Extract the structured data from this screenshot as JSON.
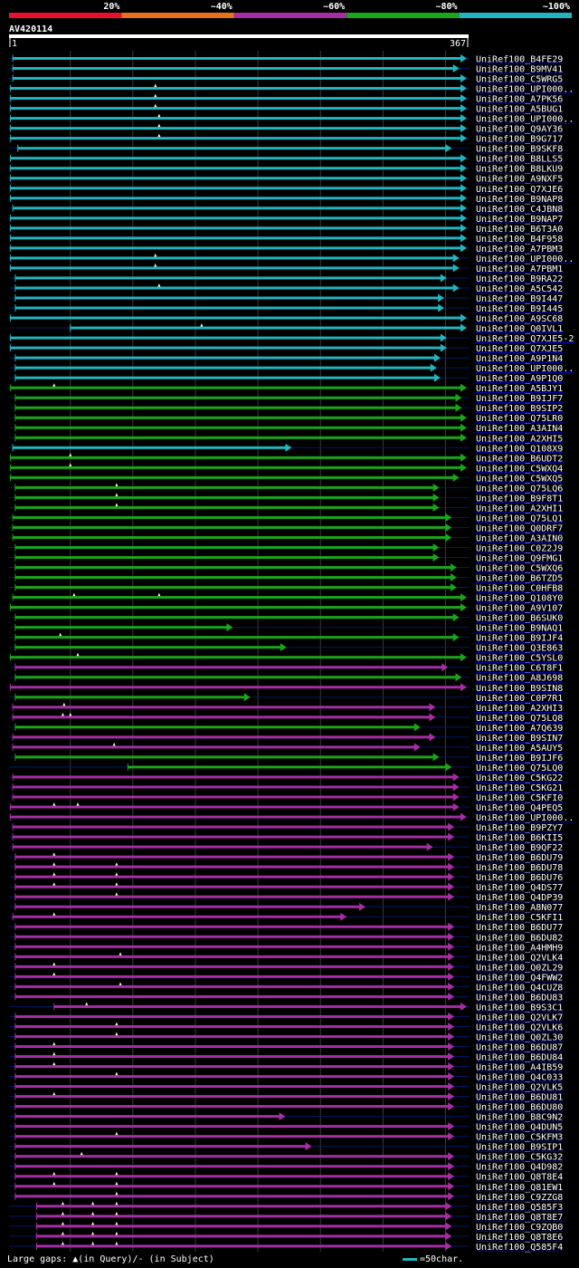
{
  "chart_data": {
    "type": "alignment_overview",
    "query_name": "AV420114",
    "query_range": [
      1,
      367
    ],
    "color_scale": [
      {
        "label": "20%",
        "color": "#e8102a"
      },
      {
        "label": "~40%",
        "color": "#e8711e"
      },
      {
        "label": "~60%",
        "color": "#a52ea5"
      },
      {
        "label": "~80%",
        "color": "#1aa51a"
      },
      {
        "label": "~100%",
        "color": "#21b5c0"
      }
    ],
    "colors": {
      "cyan": "#21b5c0",
      "green": "#1aa51a",
      "magenta": "#a52ea5",
      "gap": "#ffffcc",
      "link": "#0000ff"
    },
    "hits": [
      {
        "name": "UniRef100_B4FE29",
        "c": "cyan",
        "s": 4,
        "e": 367,
        "g": []
      },
      {
        "name": "UniRef100_B9MV41",
        "c": "cyan",
        "s": 4,
        "e": 361,
        "g": []
      },
      {
        "name": "UniRef100_C5WRG5",
        "c": "cyan",
        "s": 4,
        "e": 367,
        "g": []
      },
      {
        "name": "UniRef100_UPI000..",
        "c": "cyan",
        "s": 2,
        "e": 367,
        "g": [
          118
        ]
      },
      {
        "name": "UniRef100_A7PK56",
        "c": "cyan",
        "s": 2,
        "e": 367,
        "g": [
          118
        ]
      },
      {
        "name": "UniRef100_A5BUG1",
        "c": "cyan",
        "s": 2,
        "e": 367,
        "g": [
          118
        ]
      },
      {
        "name": "UniRef100_UPI000..",
        "c": "cyan",
        "s": 2,
        "e": 367,
        "g": [
          121
        ]
      },
      {
        "name": "UniRef100_Q9AY36",
        "c": "cyan",
        "s": 2,
        "e": 367,
        "g": [
          121
        ]
      },
      {
        "name": "UniRef100_B9G717",
        "c": "cyan",
        "s": 2,
        "e": 367,
        "g": [
          121
        ]
      },
      {
        "name": "UniRef100_B9SKF8",
        "c": "cyan",
        "s": 8,
        "e": 355,
        "g": []
      },
      {
        "name": "UniRef100_B8LLS5",
        "c": "cyan",
        "s": 2,
        "e": 367,
        "g": []
      },
      {
        "name": "UniRef100_B8LKU9",
        "c": "cyan",
        "s": 2,
        "e": 367,
        "g": []
      },
      {
        "name": "UniRef100_A9NXF5",
        "c": "cyan",
        "s": 2,
        "e": 367,
        "g": []
      },
      {
        "name": "UniRef100_Q7XJE6",
        "c": "cyan",
        "s": 2,
        "e": 367,
        "g": []
      },
      {
        "name": "UniRef100_B9NAP8",
        "c": "cyan",
        "s": 2,
        "e": 367,
        "g": []
      },
      {
        "name": "UniRef100_C4JBN8",
        "c": "cyan",
        "s": 4,
        "e": 367,
        "g": []
      },
      {
        "name": "UniRef100_B9NAP7",
        "c": "cyan",
        "s": 2,
        "e": 367,
        "g": []
      },
      {
        "name": "UniRef100_B6T3A0",
        "c": "cyan",
        "s": 2,
        "e": 367,
        "g": []
      },
      {
        "name": "UniRef100_B4F958",
        "c": "cyan",
        "s": 2,
        "e": 367,
        "g": []
      },
      {
        "name": "UniRef100_A7PBM3",
        "c": "cyan",
        "s": 2,
        "e": 367,
        "g": []
      },
      {
        "name": "UniRef100_UPI000..",
        "c": "cyan",
        "s": 2,
        "e": 361,
        "g": [
          118
        ]
      },
      {
        "name": "UniRef100_A7PBM1",
        "c": "cyan",
        "s": 2,
        "e": 361,
        "g": [
          118
        ]
      },
      {
        "name": "UniRef100_B9RA22",
        "c": "cyan",
        "s": 6,
        "e": 351,
        "g": []
      },
      {
        "name": "UniRef100_A5C542",
        "c": "cyan",
        "s": 6,
        "e": 361,
        "g": [
          121
        ]
      },
      {
        "name": "UniRef100_B9I447",
        "c": "cyan",
        "s": 6,
        "e": 349,
        "g": []
      },
      {
        "name": "UniRef100_B9I445",
        "c": "cyan",
        "s": 6,
        "e": 349,
        "g": []
      },
      {
        "name": "UniRef100_A9SC68",
        "c": "cyan",
        "s": 2,
        "e": 367,
        "g": []
      },
      {
        "name": "UniRef100_Q0IVL1",
        "c": "cyan",
        "s": 50,
        "e": 367,
        "g": [
          155
        ]
      },
      {
        "name": "UniRef100_Q7XJE5-2",
        "c": "cyan",
        "s": 2,
        "e": 351,
        "g": []
      },
      {
        "name": "UniRef100_Q7XJE5",
        "c": "cyan",
        "s": 2,
        "e": 351,
        "g": []
      },
      {
        "name": "UniRef100_A9P1N4",
        "c": "cyan",
        "s": 6,
        "e": 346,
        "g": []
      },
      {
        "name": "UniRef100_UPI000..",
        "c": "cyan",
        "s": 6,
        "e": 343,
        "g": []
      },
      {
        "name": "UniRef100_A9P1Q0",
        "c": "cyan",
        "s": 6,
        "e": 346,
        "g": []
      },
      {
        "name": "UniRef100_A5BJY1",
        "c": "green",
        "s": 2,
        "e": 367,
        "g": [
          37
        ]
      },
      {
        "name": "UniRef100_B9IJF7",
        "c": "green",
        "s": 6,
        "e": 363,
        "g": []
      },
      {
        "name": "UniRef100_B9SIP2",
        "c": "green",
        "s": 6,
        "e": 363,
        "g": []
      },
      {
        "name": "UniRef100_Q75LR0",
        "c": "green",
        "s": 6,
        "e": 367,
        "g": []
      },
      {
        "name": "UniRef100_A3AIN4",
        "c": "green",
        "s": 6,
        "e": 367,
        "g": []
      },
      {
        "name": "UniRef100_A2XHI5",
        "c": "green",
        "s": 6,
        "e": 367,
        "g": []
      },
      {
        "name": "UniRef100_Q108X9",
        "c": "cyan",
        "s": 4,
        "e": 227,
        "g": []
      },
      {
        "name": "UniRef100_B6UDT2",
        "c": "green",
        "s": 2,
        "e": 367,
        "g": [
          50
        ]
      },
      {
        "name": "UniRef100_C5WXQ4",
        "c": "green",
        "s": 2,
        "e": 367,
        "g": [
          50
        ]
      },
      {
        "name": "UniRef100_C5WXQ5",
        "c": "green",
        "s": 2,
        "e": 361,
        "g": []
      },
      {
        "name": "UniRef100_Q75LQ6",
        "c": "green",
        "s": 6,
        "e": 345,
        "g": [
          87
        ]
      },
      {
        "name": "UniRef100_B9F8T1",
        "c": "green",
        "s": 6,
        "e": 345,
        "g": [
          87
        ]
      },
      {
        "name": "UniRef100_A2XHI1",
        "c": "green",
        "s": 6,
        "e": 345,
        "g": [
          87
        ]
      },
      {
        "name": "UniRef100_Q75LQ1",
        "c": "green",
        "s": 4,
        "e": 355,
        "g": []
      },
      {
        "name": "UniRef100_Q0DRF7",
        "c": "green",
        "s": 4,
        "e": 355,
        "g": []
      },
      {
        "name": "UniRef100_A3AIN0",
        "c": "green",
        "s": 4,
        "e": 355,
        "g": []
      },
      {
        "name": "UniRef100_C0Z2J9",
        "c": "green",
        "s": 6,
        "e": 345,
        "g": []
      },
      {
        "name": "UniRef100_Q9FMG1",
        "c": "green",
        "s": 6,
        "e": 345,
        "g": []
      },
      {
        "name": "UniRef100_C5WXQ6",
        "c": "green",
        "s": 6,
        "e": 359,
        "g": []
      },
      {
        "name": "UniRef100_B6TZD5",
        "c": "green",
        "s": 6,
        "e": 359,
        "g": []
      },
      {
        "name": "UniRef100_C0HFB8",
        "c": "green",
        "s": 6,
        "e": 359,
        "g": []
      },
      {
        "name": "UniRef100_Q108Y0",
        "c": "green",
        "s": 4,
        "e": 367,
        "g": [
          53,
          121
        ]
      },
      {
        "name": "UniRef100_A9V107",
        "c": "green",
        "s": 2,
        "e": 367,
        "g": []
      },
      {
        "name": "UniRef100_B6SUK0",
        "c": "green",
        "s": 6,
        "e": 361,
        "g": []
      },
      {
        "name": "UniRef100_B9NAQ1",
        "c": "green",
        "s": 6,
        "e": 180,
        "g": []
      },
      {
        "name": "UniRef100_B9IJF4",
        "c": "green",
        "s": 6,
        "e": 361,
        "g": [
          42
        ]
      },
      {
        "name": "UniRef100_Q3E863",
        "c": "green",
        "s": 6,
        "e": 223,
        "g": []
      },
      {
        "name": "UniRef100_C5YSL0",
        "c": "green",
        "s": 2,
        "e": 367,
        "g": [
          56
        ]
      },
      {
        "name": "UniRef100_C6T8F1",
        "c": "magenta",
        "s": 6,
        "e": 352,
        "g": []
      },
      {
        "name": "UniRef100_A8J698",
        "c": "green",
        "s": 6,
        "e": 363,
        "g": []
      },
      {
        "name": "UniRef100_B9SIN8",
        "c": "magenta",
        "s": 2,
        "e": 367,
        "g": []
      },
      {
        "name": "UniRef100_C0P7R1",
        "c": "green",
        "s": 6,
        "e": 194,
        "g": []
      },
      {
        "name": "UniRef100_A2XHI3",
        "c": "magenta",
        "s": 4,
        "e": 342,
        "g": [
          45
        ]
      },
      {
        "name": "UniRef100_Q75LQ8",
        "c": "magenta",
        "s": 4,
        "e": 342,
        "g": [
          44,
          50
        ]
      },
      {
        "name": "UniRef100_A7Q639",
        "c": "green",
        "s": 6,
        "e": 330,
        "g": []
      },
      {
        "name": "UniRef100_B9SIN7",
        "c": "magenta",
        "s": 4,
        "e": 342,
        "g": []
      },
      {
        "name": "UniRef100_A5AUY5",
        "c": "magenta",
        "s": 4,
        "e": 330,
        "g": [
          85
        ]
      },
      {
        "name": "UniRef100_B9IJF6",
        "c": "green",
        "s": 6,
        "e": 345,
        "g": []
      },
      {
        "name": "UniRef100_Q75LQ0",
        "c": "green",
        "s": 96,
        "e": 355,
        "g": []
      },
      {
        "name": "UniRef100_C5KG22",
        "c": "magenta",
        "s": 4,
        "e": 361,
        "g": []
      },
      {
        "name": "UniRef100_C5KG21",
        "c": "magenta",
        "s": 4,
        "e": 361,
        "g": []
      },
      {
        "name": "UniRef100_C5KFI0",
        "c": "magenta",
        "s": 4,
        "e": 361,
        "g": []
      },
      {
        "name": "UniRef100_Q4PEQ5",
        "c": "magenta",
        "s": 2,
        "e": 361,
        "g": [
          37,
          56
        ]
      },
      {
        "name": "UniRef100_UPI000..",
        "c": "magenta",
        "s": 2,
        "e": 367,
        "g": []
      },
      {
        "name": "UniRef100_B9PZY7",
        "c": "magenta",
        "s": 4,
        "e": 357,
        "g": []
      },
      {
        "name": "UniRef100_B6KII5",
        "c": "magenta",
        "s": 4,
        "e": 357,
        "g": []
      },
      {
        "name": "UniRef100_B9QF22",
        "c": "magenta",
        "s": 4,
        "e": 340,
        "g": []
      },
      {
        "name": "UniRef100_B6DU79",
        "c": "magenta",
        "s": 6,
        "e": 357,
        "g": [
          37
        ]
      },
      {
        "name": "UniRef100_B6DU78",
        "c": "magenta",
        "s": 6,
        "e": 357,
        "g": [
          37,
          87
        ]
      },
      {
        "name": "UniRef100_B6DU76",
        "c": "magenta",
        "s": 6,
        "e": 357,
        "g": [
          37,
          87
        ]
      },
      {
        "name": "UniRef100_Q4DS77",
        "c": "magenta",
        "s": 6,
        "e": 357,
        "g": [
          37,
          87
        ]
      },
      {
        "name": "UniRef100_Q4DP39",
        "c": "magenta",
        "s": 6,
        "e": 357,
        "g": [
          87
        ]
      },
      {
        "name": "UniRef100_A8N077",
        "c": "magenta",
        "s": 6,
        "e": 286,
        "g": []
      },
      {
        "name": "UniRef100_C5KFI1",
        "c": "magenta",
        "s": 4,
        "e": 271,
        "g": [
          37
        ]
      },
      {
        "name": "UniRef100_B6DU77",
        "c": "magenta",
        "s": 6,
        "e": 357,
        "g": []
      },
      {
        "name": "UniRef100_B6DU82",
        "c": "magenta",
        "s": 6,
        "e": 357,
        "g": []
      },
      {
        "name": "UniRef100_A4HMH9",
        "c": "magenta",
        "s": 6,
        "e": 357,
        "g": []
      },
      {
        "name": "UniRef100_Q2VLK4",
        "c": "magenta",
        "s": 6,
        "e": 357,
        "g": [
          90
        ]
      },
      {
        "name": "UniRef100_Q0ZL29",
        "c": "magenta",
        "s": 6,
        "e": 357,
        "g": [
          37
        ]
      },
      {
        "name": "UniRef100_Q4FWW2",
        "c": "magenta",
        "s": 6,
        "e": 357,
        "g": [
          37
        ]
      },
      {
        "name": "UniRef100_Q4CUZ8",
        "c": "magenta",
        "s": 6,
        "e": 357,
        "g": [
          90
        ]
      },
      {
        "name": "UniRef100_B6DU83",
        "c": "magenta",
        "s": 6,
        "e": 357,
        "g": []
      },
      {
        "name": "UniRef100_B9S3C1",
        "c": "magenta",
        "s": 37,
        "e": 367,
        "g": [
          63
        ]
      },
      {
        "name": "UniRef100_Q2VLK7",
        "c": "magenta",
        "s": 6,
        "e": 357,
        "g": []
      },
      {
        "name": "UniRef100_Q2VLK6",
        "c": "magenta",
        "s": 6,
        "e": 357,
        "g": [
          87
        ]
      },
      {
        "name": "UniRef100_Q0ZL30",
        "c": "magenta",
        "s": 6,
        "e": 357,
        "g": [
          87
        ]
      },
      {
        "name": "UniRef100_B6DU87",
        "c": "magenta",
        "s": 6,
        "e": 357,
        "g": [
          37
        ]
      },
      {
        "name": "UniRef100_B6DU84",
        "c": "magenta",
        "s": 6,
        "e": 357,
        "g": [
          37
        ]
      },
      {
        "name": "UniRef100_A4IB59",
        "c": "magenta",
        "s": 6,
        "e": 357,
        "g": [
          37
        ]
      },
      {
        "name": "UniRef100_Q4C033",
        "c": "magenta",
        "s": 6,
        "e": 357,
        "g": [
          87
        ]
      },
      {
        "name": "UniRef100_Q2VLK5",
        "c": "magenta",
        "s": 6,
        "e": 357,
        "g": []
      },
      {
        "name": "UniRef100_B6DU81",
        "c": "magenta",
        "s": 6,
        "e": 357,
        "g": [
          37
        ]
      },
      {
        "name": "UniRef100_B6DU80",
        "c": "magenta",
        "s": 6,
        "e": 357,
        "g": []
      },
      {
        "name": "UniRef100_B8C9N2",
        "c": "magenta",
        "s": 6,
        "e": 222,
        "g": []
      },
      {
        "name": "UniRef100_Q4DUN5",
        "c": "magenta",
        "s": 6,
        "e": 357,
        "g": []
      },
      {
        "name": "UniRef100_C5KFM3",
        "c": "magenta",
        "s": 6,
        "e": 357,
        "g": [
          87
        ]
      },
      {
        "name": "UniRef100_B9SIP1",
        "c": "magenta",
        "s": 6,
        "e": 243,
        "g": []
      },
      {
        "name": "UniRef100_C5KG32",
        "c": "magenta",
        "s": 6,
        "e": 357,
        "g": [
          59
        ]
      },
      {
        "name": "UniRef100_Q4D982",
        "c": "magenta",
        "s": 6,
        "e": 357,
        "g": []
      },
      {
        "name": "UniRef100_Q8T8E4",
        "c": "magenta",
        "s": 6,
        "e": 357,
        "g": [
          37,
          87
        ]
      },
      {
        "name": "UniRef100_Q81EW1",
        "c": "magenta",
        "s": 6,
        "e": 357,
        "g": [
          37,
          87
        ]
      },
      {
        "name": "UniRef100_C9ZZG8",
        "c": "magenta",
        "s": 6,
        "e": 357,
        "g": [
          87
        ]
      },
      {
        "name": "UniRef100_Q585F3",
        "c": "magenta",
        "s": 23,
        "e": 355,
        "g": [
          44,
          68,
          87
        ]
      },
      {
        "name": "UniRef100_Q8T8E7",
        "c": "magenta",
        "s": 23,
        "e": 355,
        "g": [
          44,
          68,
          87
        ]
      },
      {
        "name": "UniRef100_C9ZQB0",
        "c": "magenta",
        "s": 23,
        "e": 355,
        "g": [
          44,
          68,
          87
        ]
      },
      {
        "name": "UniRef100_Q8T8E6",
        "c": "magenta",
        "s": 23,
        "e": 355,
        "g": [
          44,
          68,
          87
        ]
      },
      {
        "name": "UniRef100_Q585F4",
        "c": "magenta",
        "s": 23,
        "e": 355,
        "g": [
          44,
          68,
          87
        ]
      }
    ]
  },
  "footer": {
    "legend_text": "Large gaps: ▲(in Query)/- (in Subject)",
    "scale_text": "=50char."
  }
}
